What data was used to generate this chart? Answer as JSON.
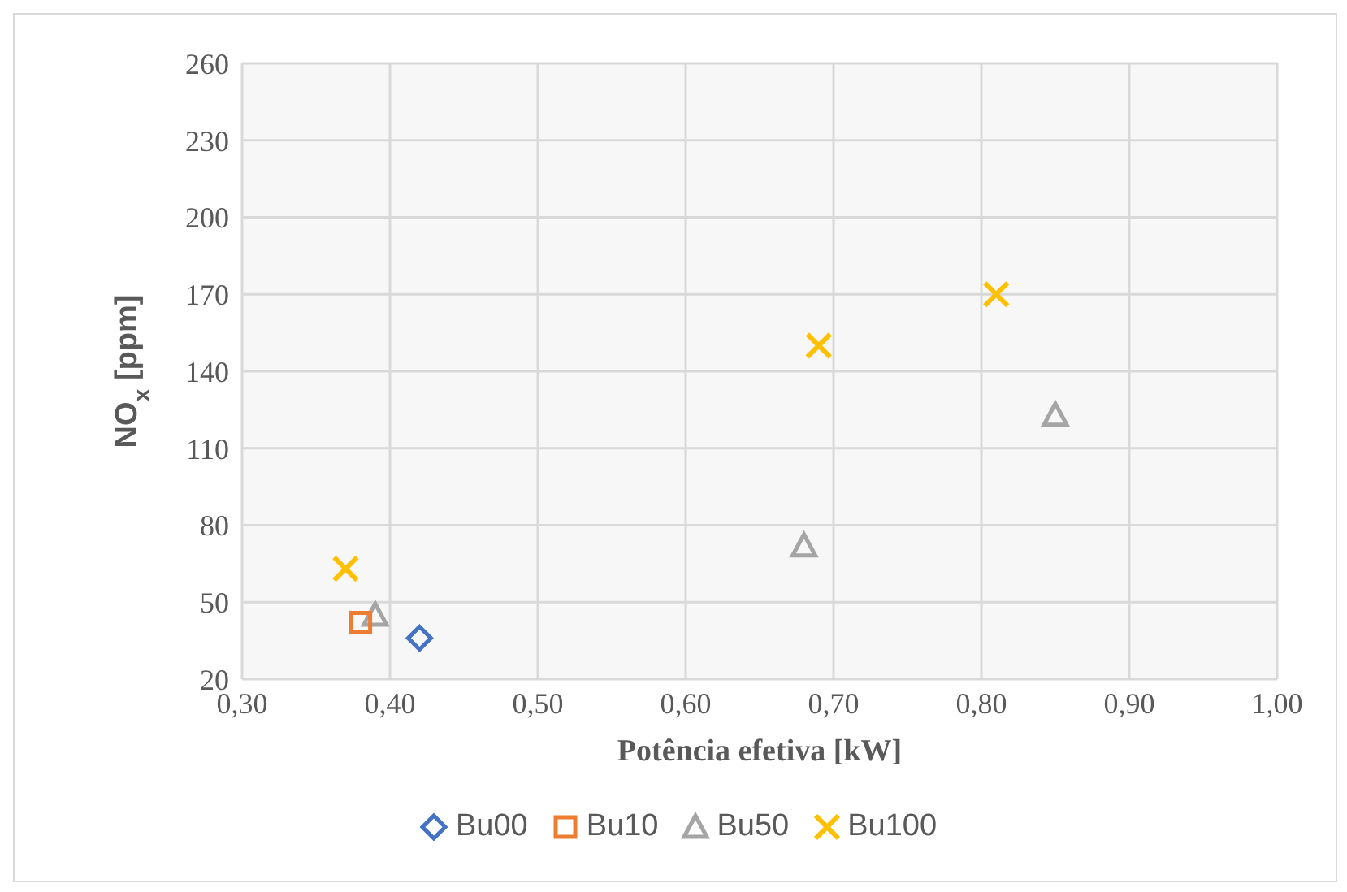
{
  "chart_data": {
    "type": "scatter",
    "xlabel": "Potência efetiva [kW]",
    "ylabel": "NO$_{x}$ [ppm]",
    "xlim": [
      0.3,
      1.0
    ],
    "xticks": [
      {
        "value": 0.3,
        "label": "0,30"
      },
      {
        "value": 0.4,
        "label": "0,40"
      },
      {
        "value": 0.5,
        "label": "0,50"
      },
      {
        "value": 0.6,
        "label": "0,60"
      },
      {
        "value": 0.7,
        "label": "0,70"
      },
      {
        "value": 0.8,
        "label": "0,80"
      },
      {
        "value": 0.9,
        "label": "0,90"
      },
      {
        "value": 1.0,
        "label": "1,00"
      }
    ],
    "ylim": [
      20,
      260
    ],
    "yticks": [
      20,
      50,
      80,
      110,
      140,
      170,
      200,
      230,
      260
    ],
    "grid": true,
    "legend": "bottom",
    "series": [
      {
        "name": "Bu00",
        "color": "#4472c4",
        "marker": "diamond",
        "x": [
          0.42
        ],
        "values": [
          36
        ]
      },
      {
        "name": "Bu10",
        "color": "#ed7d31",
        "marker": "square",
        "x": [
          0.38
        ],
        "values": [
          42
        ]
      },
      {
        "name": "Bu50",
        "color": "#a5a5a5",
        "marker": "triangle",
        "x": [
          0.39,
          0.68,
          0.85
        ],
        "values": [
          45,
          72,
          123
        ]
      },
      {
        "name": "Bu100",
        "color": "#ffc000",
        "marker": "cross",
        "x": [
          0.37,
          0.69,
          0.81
        ],
        "values": [
          63,
          150,
          170
        ]
      }
    ]
  }
}
